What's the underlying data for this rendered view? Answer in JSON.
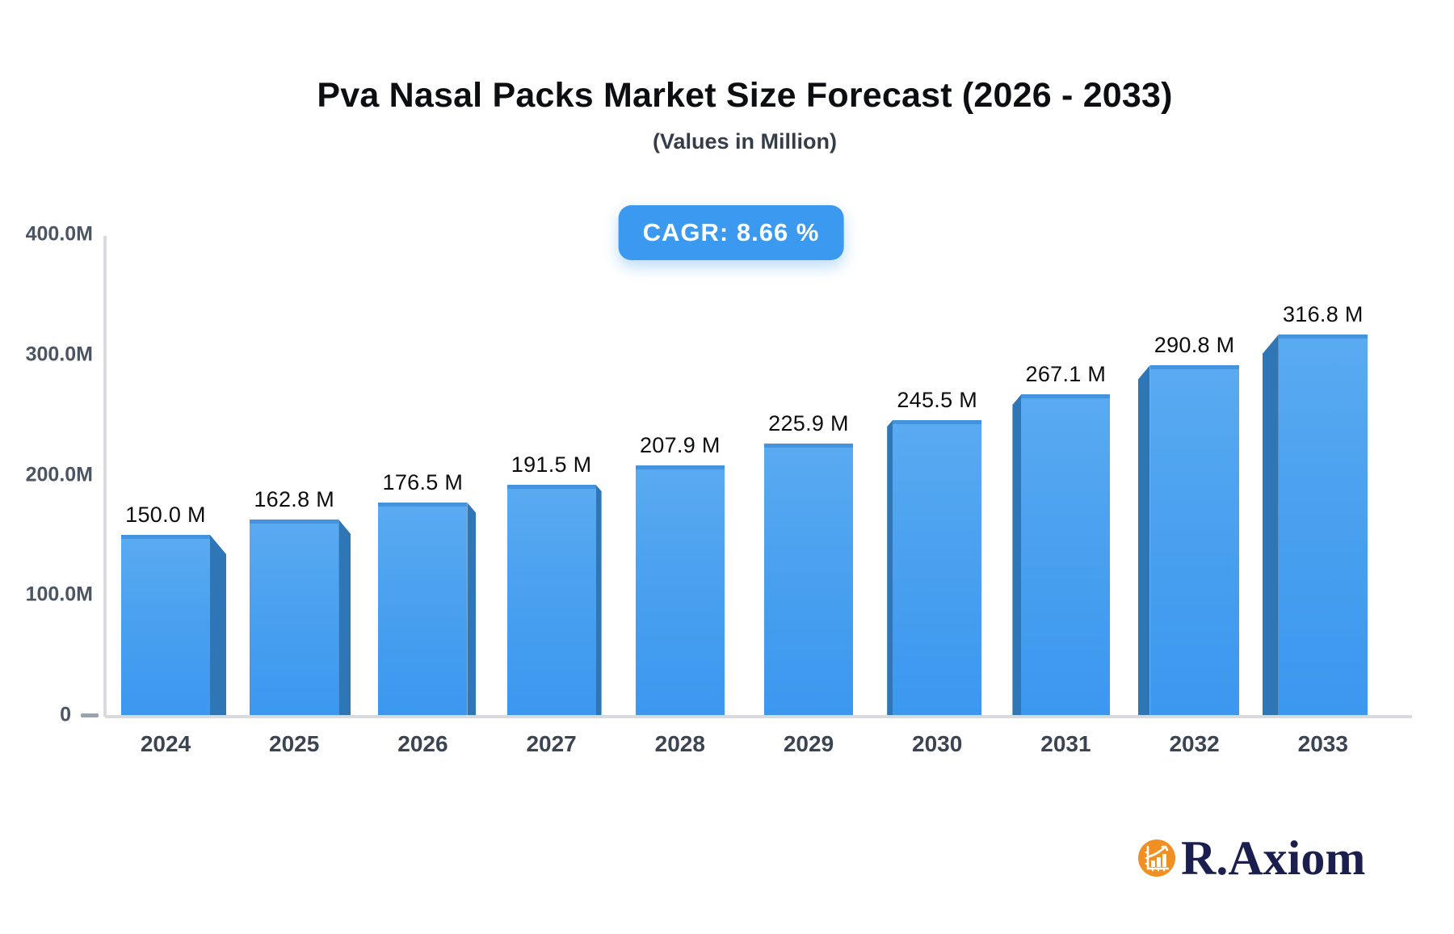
{
  "title": "Pva Nasal Packs Market Size Forecast (2026 - 2033)",
  "subtitle": "(Values in Million)",
  "badge": {
    "label": "CAGR: 8.66 %"
  },
  "logo": {
    "text": "R.Axiom",
    "icon": "bar-chart-growth-icon"
  },
  "colors": {
    "bar_face_top": "#59aaf1",
    "bar_face_bottom": "#3c97ef",
    "bar_side": "#2e76b6",
    "bar_top_border": "#4493de",
    "badge_bg": "#3b9af0",
    "axis_line": "#d8dade",
    "y_label": "#4b5563",
    "year_label": "#3a4453",
    "value_label": "#0c0d0f",
    "logo_orange": "#f09022",
    "logo_navy": "#1b1f4e"
  },
  "chart_data": {
    "type": "bar",
    "title": "Pva Nasal Packs Market Size Forecast (2026 - 2033)",
    "subtitle": "(Values in Million)",
    "cagr": "8.66 %",
    "categories": [
      "2024",
      "2025",
      "2026",
      "2027",
      "2028",
      "2029",
      "2030",
      "2031",
      "2032",
      "2033"
    ],
    "values": [
      150.0,
      162.8,
      176.5,
      191.5,
      207.9,
      225.9,
      245.5,
      267.1,
      290.8,
      316.8
    ],
    "value_labels": [
      "150.0 M",
      "162.8 M",
      "176.5 M",
      "191.5 M",
      "207.9 M",
      "225.9 M",
      "245.5 M",
      "267.1 M",
      "290.8 M",
      "316.8 M"
    ],
    "xlabel": "",
    "ylabel": "",
    "ylim": [
      0,
      400
    ],
    "y_ticks": [
      {
        "label": "400.0M",
        "value": 400,
        "dash": false
      },
      {
        "label": "300.0M",
        "value": 300,
        "dash": false
      },
      {
        "label": "200.0M",
        "value": 200,
        "dash": false
      },
      {
        "label": "100.0M",
        "value": 100,
        "dash": false
      },
      {
        "label": "0",
        "value": 0,
        "dash": true
      }
    ],
    "grid": false,
    "legend": "none",
    "bar_style": "3d-perspective-center"
  }
}
